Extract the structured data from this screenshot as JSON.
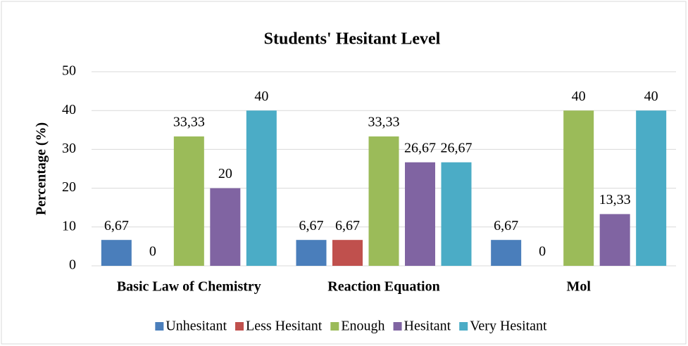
{
  "chart_data": {
    "type": "bar",
    "title": "Students' Hesitant Level",
    "y_label": "Percentage (%)",
    "categories": [
      "Basic Law of Chemistry",
      "Reaction Equation",
      "Mol"
    ],
    "series": [
      {
        "name": "Unhesitant",
        "color": "#4a7ebb",
        "values": [
          6.67,
          6.67,
          6.67
        ],
        "value_labels": [
          "6,67",
          "6,67",
          "6,67"
        ]
      },
      {
        "name": "Less Hesitant",
        "color": "#c0504d",
        "values": [
          0,
          6.67,
          0
        ],
        "value_labels": [
          "0",
          "6,67",
          "0"
        ]
      },
      {
        "name": "Enough",
        "color": "#9bbb59",
        "values": [
          33.33,
          33.33,
          40
        ],
        "value_labels": [
          "33,33",
          "33,33",
          "40"
        ]
      },
      {
        "name": "Hesitant",
        "color": "#8064a2",
        "values": [
          20,
          26.67,
          13.33
        ],
        "value_labels": [
          "20",
          "26,67",
          "13,33"
        ]
      },
      {
        "name": "Very Hesitant",
        "color": "#4bacc6",
        "values": [
          40,
          26.67,
          40
        ],
        "value_labels": [
          "40",
          "26,67",
          "40"
        ]
      }
    ],
    "ylim": [
      0,
      50
    ],
    "yticks": [
      0,
      10,
      20,
      30,
      40,
      50
    ],
    "grid": true,
    "legend": "bottom"
  }
}
